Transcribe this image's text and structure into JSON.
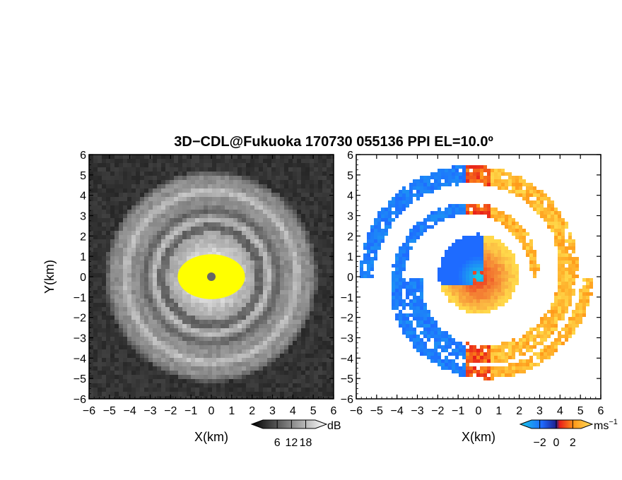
{
  "chart_data": [
    {
      "type": "heatmap",
      "panel": "reflectivity",
      "title": "3D−CDL@Fukuoka 170730 055136 PPI EL=10.0º",
      "xlabel": "X(km)",
      "ylabel": "Y(km)",
      "xlim": [
        -6,
        6
      ],
      "ylim": [
        -6,
        6
      ],
      "xticks": [
        "−6",
        "−5",
        "−4",
        "−3",
        "−2",
        "−1",
        "0",
        "1",
        "2",
        "3",
        "4",
        "5",
        "6"
      ],
      "yticks": [
        "6",
        "5",
        "4",
        "3",
        "2",
        "1",
        "0",
        "−1",
        "−2",
        "−3",
        "−4",
        "−5",
        "−6"
      ],
      "colormap": "grayscale",
      "colorbar": {
        "unit": "dB",
        "ticks": [
          "6",
          "12",
          "18"
        ],
        "range": [
          0,
          22
        ]
      },
      "saturated_color": "#ffff00",
      "features": {
        "inner_bright_core_radius_km": 1.0,
        "rings_km": [
          2.8,
          3.6,
          4.2,
          4.8
        ]
      }
    },
    {
      "type": "heatmap",
      "panel": "doppler_velocity",
      "xlabel": "X(km)",
      "xlim": [
        -6,
        6
      ],
      "ylim": [
        -6,
        6
      ],
      "xticks": [
        "−6",
        "−5",
        "−4",
        "−3",
        "−2",
        "−1",
        "0",
        "1",
        "2",
        "3",
        "4",
        "5",
        "6"
      ],
      "yticks": [
        "6",
        "5",
        "4",
        "3",
        "2",
        "1",
        "0",
        "−1",
        "−2",
        "−3",
        "−4",
        "−5",
        "−6"
      ],
      "colormap": "blue-white-orange",
      "colorbar": {
        "unit": "ms",
        "unit_exponent": "−1",
        "ticks": [
          "−2",
          "0",
          "2"
        ],
        "range": [
          -3,
          3
        ]
      },
      "features": {
        "spiral_arms": 2,
        "core_radius_km": 1.8
      }
    }
  ],
  "colors": {
    "gray_low": "#1a1a1a",
    "gray_high": "#f2f2f2",
    "yellow": "#ffff00",
    "center_dot": "#666666",
    "vel_blue": "#1e6bff",
    "vel_cyan": "#19c8e6",
    "vel_red": "#e8201a",
    "vel_orange": "#ff9a1a",
    "vel_yellow": "#ffd84a"
  }
}
